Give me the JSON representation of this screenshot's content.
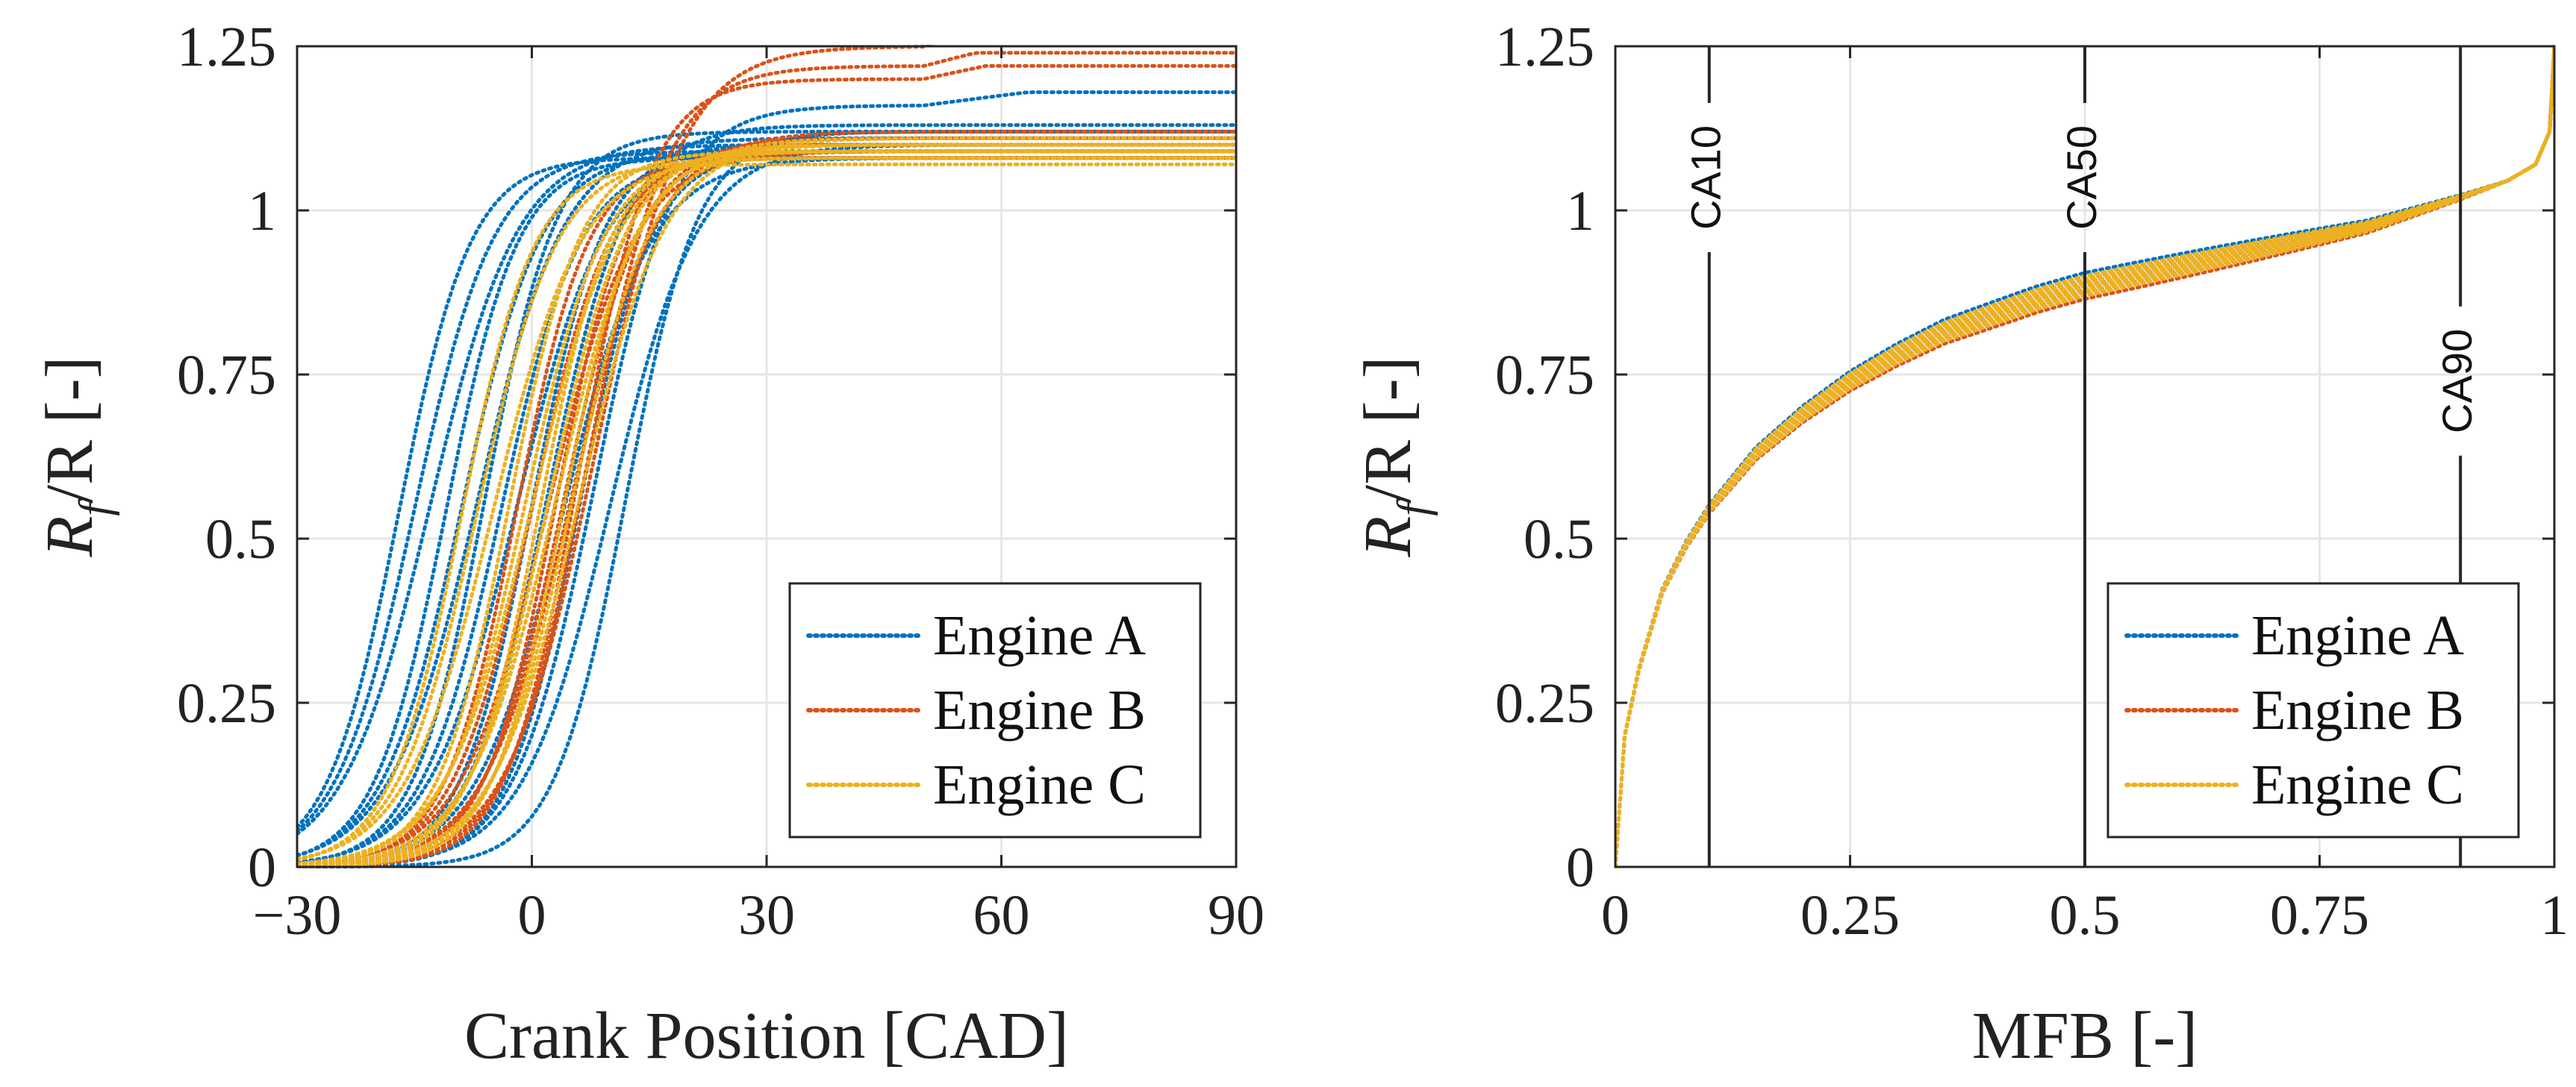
{
  "colors": {
    "engine_a": "#0072BD",
    "engine_b": "#D95319",
    "engine_c": "#EDB120",
    "grid": "#e6e6e6",
    "axis": "#262626",
    "marker_line": "#262626"
  },
  "chart_data": [
    {
      "type": "line",
      "line_style": "dotted",
      "xlabel": "Crank Position [CAD]",
      "ylabel": {
        "main": "R",
        "sub": "f",
        "rest": "/R [-]"
      },
      "xlim": [
        -30,
        90
      ],
      "ylim": [
        0,
        1.25
      ],
      "xticks": [
        -30,
        0,
        30,
        60,
        90
      ],
      "xtick_labels": [
        "−30",
        "0",
        "30",
        "60",
        "90"
      ],
      "yticks": [
        0,
        0.25,
        0.5,
        0.75,
        1,
        1.25
      ],
      "ytick_labels": [
        "0",
        "0.25",
        "0.5",
        "0.75",
        "1",
        "1.25"
      ],
      "grid": true,
      "legend": {
        "location": "bottom-right",
        "entries": [
          "Engine A",
          "Engine B",
          "Engine C"
        ]
      },
      "curve_model": "sigmoid rising from ~0 to a plateau of ~1.07-1.10; each series holds many cycles",
      "series": [
        {
          "name": "Engine A",
          "color_key": "engine_a",
          "centers": [
            -17,
            -15,
            -13,
            -11,
            -9,
            -7,
            -6,
            -4,
            -2,
            0,
            2,
            4,
            6,
            8,
            10,
            12
          ],
          "plateaus": [
            1.08,
            1.09,
            1.1,
            1.08,
            1.09,
            1.11,
            1.12,
            1.08,
            1.09,
            1.1,
            1.13,
            1.08,
            1.09,
            1.16,
            1.1,
            1.12
          ]
        },
        {
          "name": "Engine B",
          "color_key": "engine_b",
          "centers": [
            -2,
            0,
            2,
            3,
            4,
            5,
            6,
            7,
            8
          ],
          "plateaus": [
            1.08,
            1.09,
            1.09,
            1.1,
            1.11,
            1.12,
            1.2,
            1.22,
            1.25
          ]
        },
        {
          "name": "Engine C",
          "color_key": "engine_c",
          "centers": [
            -9,
            -7,
            -5,
            -3,
            -1,
            0,
            1,
            2,
            3,
            4,
            5,
            6
          ],
          "plateaus": [
            1.07,
            1.08,
            1.08,
            1.09,
            1.09,
            1.1,
            1.09,
            1.1,
            1.11,
            1.09,
            1.1,
            1.11
          ]
        }
      ]
    },
    {
      "type": "line",
      "line_style": "dotted",
      "xlabel": "MFB [-]",
      "ylabel": {
        "main": "R",
        "sub": "f",
        "rest": "/R [-]"
      },
      "xlim": [
        0,
        1
      ],
      "ylim": [
        0,
        1.25
      ],
      "xticks": [
        0,
        0.25,
        0.5,
        0.75,
        1
      ],
      "xtick_labels": [
        "0",
        "0.25",
        "0.5",
        "0.75",
        "1"
      ],
      "yticks": [
        0,
        0.25,
        0.5,
        0.75,
        1,
        1.25
      ],
      "ytick_labels": [
        "0",
        "0.25",
        "0.5",
        "0.75",
        "1",
        "1.25"
      ],
      "grid": true,
      "legend": {
        "location": "bottom-right",
        "entries": [
          "Engine A",
          "Engine B",
          "Engine C"
        ]
      },
      "reference_curve": {
        "x": [
          0,
          0.01,
          0.025,
          0.05,
          0.075,
          0.1,
          0.15,
          0.2,
          0.25,
          0.3,
          0.35,
          0.4,
          0.45,
          0.5,
          0.6,
          0.7,
          0.8,
          0.9,
          0.95,
          0.98,
          0.995,
          1.0
        ],
        "y": [
          0,
          0.2,
          0.3,
          0.42,
          0.49,
          0.545,
          0.63,
          0.69,
          0.74,
          0.78,
          0.815,
          0.84,
          0.865,
          0.885,
          0.915,
          0.945,
          0.975,
          1.02,
          1.045,
          1.07,
          1.12,
          1.25
        ]
      },
      "series": [
        {
          "name": "Engine A",
          "color_key": "engine_a",
          "offsets": [
            0.02,
            0.01,
            0.0,
            -0.01,
            0.015,
            -0.005
          ]
        },
        {
          "name": "Engine B",
          "color_key": "engine_b",
          "offsets": [
            -0.02,
            -0.01,
            0.0,
            -0.015,
            0.005
          ]
        },
        {
          "name": "Engine C",
          "color_key": "engine_c",
          "offsets": [
            0.01,
            -0.005,
            0.0,
            0.005,
            -0.015,
            0.015,
            -0.01
          ]
        }
      ],
      "markers": [
        {
          "label": "CA10",
          "x": 0.1,
          "label_y": 1.05
        },
        {
          "label": "CA50",
          "x": 0.5,
          "label_y": 1.05
        },
        {
          "label": "CA90",
          "x": 0.9,
          "label_y": 0.74
        }
      ]
    }
  ]
}
